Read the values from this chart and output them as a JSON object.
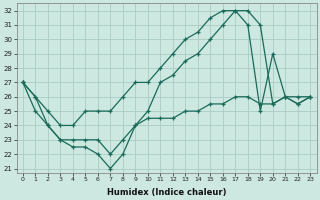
{
  "xlabel": "Humidex (Indice chaleur)",
  "ylabel": "",
  "background_color": "#cce8e0",
  "grid_color": "#aaccc4",
  "line_color": "#1a6b5a",
  "xlim_min": -0.5,
  "xlim_max": 23.5,
  "ylim_min": 20.7,
  "ylim_max": 32.5,
  "yticks": [
    21,
    22,
    23,
    24,
    25,
    26,
    27,
    28,
    29,
    30,
    31,
    32
  ],
  "xticks": [
    0,
    1,
    2,
    3,
    4,
    5,
    6,
    7,
    8,
    9,
    10,
    11,
    12,
    13,
    14,
    15,
    16,
    17,
    18,
    19,
    20,
    21,
    22,
    23
  ],
  "line_high": [
    27,
    26,
    25,
    24,
    24,
    25,
    25,
    25,
    26,
    27,
    27,
    28,
    29,
    30,
    30.5,
    31.5,
    32,
    32,
    32,
    31,
    25.5,
    26,
    25.5,
    26
  ],
  "line_mid": [
    27,
    26,
    24,
    23,
    23,
    23,
    23,
    22,
    23,
    24,
    25,
    27,
    27.5,
    28.5,
    29,
    30,
    31,
    32,
    31,
    25,
    29,
    26,
    26,
    26
  ],
  "line_low": [
    27,
    25,
    24,
    23,
    22.5,
    22.5,
    22,
    21,
    22,
    24,
    24.5,
    24.5,
    24.5,
    25,
    25,
    25.5,
    25.5,
    26,
    26,
    25.5,
    25.5,
    26,
    25.5,
    26
  ]
}
